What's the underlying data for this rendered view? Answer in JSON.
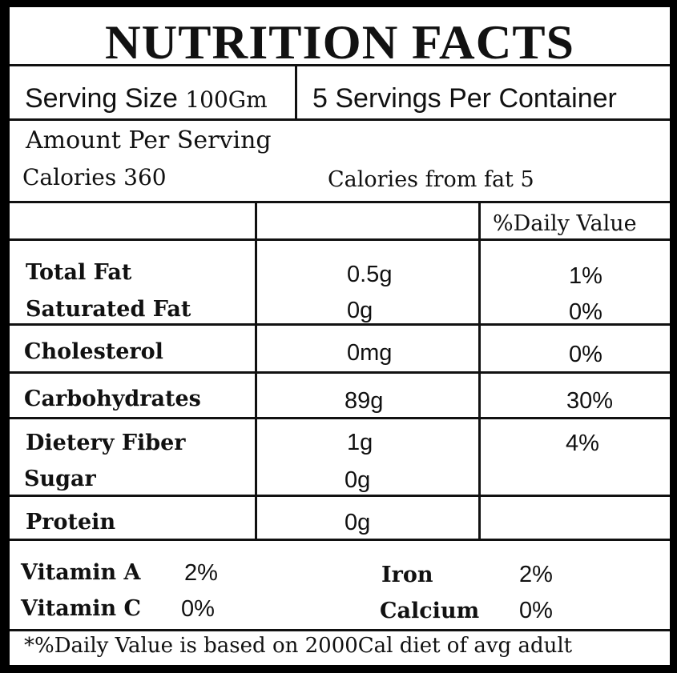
{
  "title": "NUTRITION FACTS",
  "serving": {
    "size_label": "Serving Size",
    "size_value": "100Gm",
    "per_container": "5 Servings Per Container"
  },
  "amount_per_serving": "Amount Per Serving",
  "calories": {
    "label": "Calories",
    "value": "360",
    "from_fat": "Calories from fat 5"
  },
  "daily_value_header": "%Daily Value",
  "nutrients": [
    {
      "name": "Total Fat",
      "amount": "0.5g",
      "dv": "1%"
    },
    {
      "name": "Saturated Fat",
      "amount": "0g",
      "dv": "0%"
    },
    {
      "name": "Cholesterol",
      "amount": "0mg",
      "dv": "0%"
    },
    {
      "name": "Carbohydrates",
      "amount": "89g",
      "dv": "30%"
    },
    {
      "name": "Dietery Fiber",
      "amount": "1g",
      "dv": "4%"
    },
    {
      "name": "Sugar",
      "amount": "0g",
      "dv": ""
    },
    {
      "name": "Protein",
      "amount": "0g",
      "dv": ""
    }
  ],
  "vitamins": {
    "a": {
      "label": "Vitamin A",
      "value": "2%"
    },
    "c": {
      "label": "Vitamin C",
      "value": "0%"
    },
    "iron": {
      "label": "Iron",
      "value": "2%"
    },
    "calcium": {
      "label": "Calcium",
      "value": "0%"
    }
  },
  "footnote": "*%Daily Value is based on 2000Cal diet of avg adult"
}
